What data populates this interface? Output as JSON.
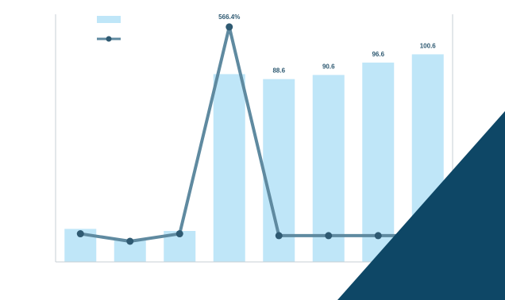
{
  "chart_data": {
    "type": "bar",
    "categories": [
      "",
      "",
      "",
      "",
      "",
      "",
      "",
      ""
    ],
    "series": [
      {
        "kind": "bar",
        "values": [
          16,
          11,
          15,
          91,
          88.6,
          90.6,
          96.6,
          100.6
        ],
        "color": "#bfe6f8"
      },
      {
        "kind": "line",
        "axis": "right",
        "values": [
          15,
          -5,
          15,
          566.4,
          10,
          10,
          10,
          10
        ],
        "color": "#5f8aa0"
      }
    ],
    "data_labels_bar": [
      "",
      "",
      "",
      "",
      "88.6",
      "90.6",
      "96.6",
      "100.6"
    ],
    "data_labels_line": [
      "",
      "",
      "",
      "566.4%",
      "",
      "",
      "",
      ""
    ],
    "legend": {
      "position": "top-left"
    },
    "ylim": [
      0,
      120
    ],
    "y2lim": [
      -60,
      600
    ],
    "grid": false
  },
  "decor": {
    "corner_color": "#0e4766"
  }
}
